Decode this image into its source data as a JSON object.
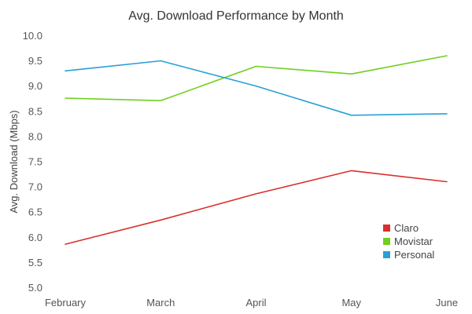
{
  "chart_data": {
    "type": "line",
    "title": "Avg. Download Performance by Month",
    "xlabel": "",
    "ylabel": "Avg. Download (Mbps)",
    "categories": [
      "February",
      "March",
      "April",
      "May",
      "June"
    ],
    "ylim": [
      5.0,
      10.0
    ],
    "yticks": [
      "5.0",
      "5.5",
      "6.0",
      "6.5",
      "7.0",
      "7.5",
      "8.0",
      "8.5",
      "9.0",
      "9.5",
      "10.0"
    ],
    "grid": false,
    "legend_position": "bottom-right",
    "series": [
      {
        "name": "Claro",
        "color": "#d9302c",
        "values": [
          5.87,
          6.35,
          6.87,
          7.33,
          7.11
        ]
      },
      {
        "name": "Movistar",
        "color": "#6fcf1f",
        "values": [
          8.77,
          8.72,
          9.4,
          9.25,
          9.61
        ]
      },
      {
        "name": "Personal",
        "color": "#2a9fd6",
        "values": [
          9.31,
          9.51,
          9.01,
          8.43,
          8.46
        ]
      }
    ]
  }
}
